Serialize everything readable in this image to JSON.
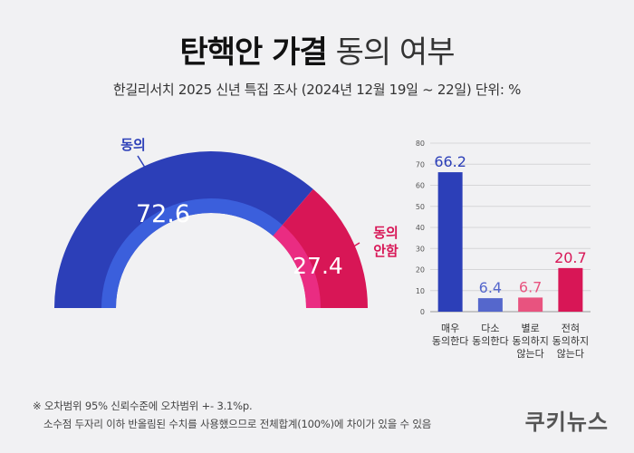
{
  "title": {
    "bold": "탄핵안 가결",
    "light": "동의 여부"
  },
  "subtitle": "한길리서치 2025 신년 특집 조사 (2024년 12월 19일 ~ 22일) 단위: %",
  "chart_data": [
    {
      "type": "pie",
      "variant": "half-donut",
      "slices": [
        {
          "label": "동의",
          "value": 72.6,
          "color": "#2c3fb8"
        },
        {
          "label": "동의\n안함",
          "value": 27.4,
          "color": "#d81656"
        }
      ]
    },
    {
      "type": "bar",
      "categories": [
        "매우\n동의한다",
        "다소\n동의한다",
        "별로\n동의하지\n않는다",
        "전혀\n동의하지\n않는다"
      ],
      "values": [
        66.2,
        6.4,
        6.7,
        20.7
      ],
      "colors": [
        "#2c3fb8",
        "#5567cc",
        "#e8537f",
        "#d81656"
      ],
      "ylim": [
        0,
        80
      ],
      "yticks": [
        0,
        10,
        20,
        30,
        40,
        50,
        60,
        70,
        80
      ],
      "grid": true
    }
  ],
  "notes": [
    "※ 오차범위 95% 신뢰수준에 오차범위 +- 3.1%p.",
    "소수점 두자리 이하 반올림된 수치를 사용했으므로 전체합계(100%)에 차이가 있을 수 있음"
  ],
  "logo": "쿠키뉴스"
}
